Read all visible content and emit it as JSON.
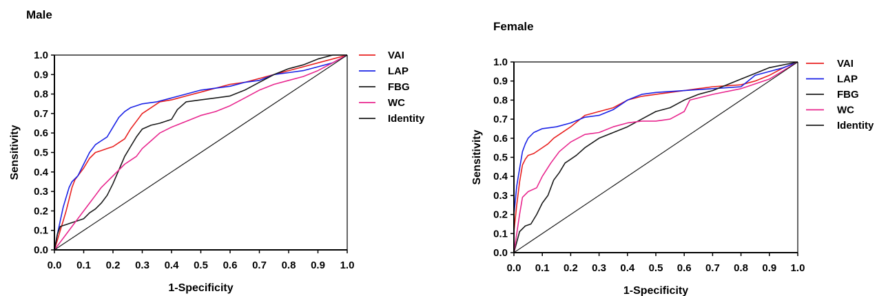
{
  "chart_data": [
    {
      "type": "line",
      "title": "Male",
      "xlabel": "1-Specificity",
      "ylabel": "Sensitivity",
      "xlim": [
        0,
        1
      ],
      "ylim": [
        0,
        1
      ],
      "ticks": [
        "0.0",
        "0.1",
        "0.2",
        "0.3",
        "0.4",
        "0.5",
        "0.6",
        "0.7",
        "0.8",
        "0.9",
        "1.0"
      ],
      "grid": false,
      "legend_position": "right",
      "series": [
        {
          "name": "VAI",
          "color": "#e8201f",
          "points": [
            [
              0,
              0
            ],
            [
              0.01,
              0.05
            ],
            [
              0.02,
              0.1
            ],
            [
              0.03,
              0.15
            ],
            [
              0.04,
              0.2
            ],
            [
              0.05,
              0.26
            ],
            [
              0.06,
              0.32
            ],
            [
              0.07,
              0.36
            ],
            [
              0.08,
              0.38
            ],
            [
              0.1,
              0.42
            ],
            [
              0.12,
              0.47
            ],
            [
              0.14,
              0.5
            ],
            [
              0.16,
              0.51
            ],
            [
              0.18,
              0.52
            ],
            [
              0.2,
              0.53
            ],
            [
              0.22,
              0.55
            ],
            [
              0.24,
              0.57
            ],
            [
              0.26,
              0.62
            ],
            [
              0.28,
              0.66
            ],
            [
              0.3,
              0.7
            ],
            [
              0.33,
              0.73
            ],
            [
              0.36,
              0.76
            ],
            [
              0.4,
              0.77
            ],
            [
              0.45,
              0.79
            ],
            [
              0.5,
              0.81
            ],
            [
              0.55,
              0.83
            ],
            [
              0.6,
              0.85
            ],
            [
              0.65,
              0.86
            ],
            [
              0.7,
              0.88
            ],
            [
              0.75,
              0.9
            ],
            [
              0.8,
              0.92
            ],
            [
              0.85,
              0.94
            ],
            [
              0.9,
              0.96
            ],
            [
              0.95,
              0.98
            ],
            [
              1,
              1
            ]
          ]
        },
        {
          "name": "LAP",
          "color": "#1a22e6",
          "points": [
            [
              0,
              0
            ],
            [
              0.01,
              0.08
            ],
            [
              0.02,
              0.15
            ],
            [
              0.03,
              0.22
            ],
            [
              0.04,
              0.27
            ],
            [
              0.05,
              0.32
            ],
            [
              0.06,
              0.35
            ],
            [
              0.08,
              0.38
            ],
            [
              0.1,
              0.44
            ],
            [
              0.12,
              0.5
            ],
            [
              0.14,
              0.54
            ],
            [
              0.16,
              0.56
            ],
            [
              0.18,
              0.58
            ],
            [
              0.2,
              0.63
            ],
            [
              0.22,
              0.68
            ],
            [
              0.24,
              0.71
            ],
            [
              0.26,
              0.73
            ],
            [
              0.28,
              0.74
            ],
            [
              0.3,
              0.75
            ],
            [
              0.35,
              0.76
            ],
            [
              0.4,
              0.78
            ],
            [
              0.45,
              0.8
            ],
            [
              0.5,
              0.82
            ],
            [
              0.55,
              0.83
            ],
            [
              0.6,
              0.84
            ],
            [
              0.65,
              0.86
            ],
            [
              0.7,
              0.87
            ],
            [
              0.75,
              0.9
            ],
            [
              0.8,
              0.91
            ],
            [
              0.85,
              0.92
            ],
            [
              0.9,
              0.94
            ],
            [
              0.95,
              0.96
            ],
            [
              1,
              1
            ]
          ]
        },
        {
          "name": "FBG",
          "color": "#1a1a1a",
          "points": [
            [
              0,
              0
            ],
            [
              0.01,
              0.08
            ],
            [
              0.02,
              0.12
            ],
            [
              0.04,
              0.13
            ],
            [
              0.06,
              0.14
            ],
            [
              0.08,
              0.15
            ],
            [
              0.1,
              0.16
            ],
            [
              0.12,
              0.19
            ],
            [
              0.14,
              0.21
            ],
            [
              0.16,
              0.24
            ],
            [
              0.18,
              0.28
            ],
            [
              0.2,
              0.34
            ],
            [
              0.22,
              0.41
            ],
            [
              0.24,
              0.48
            ],
            [
              0.26,
              0.53
            ],
            [
              0.28,
              0.58
            ],
            [
              0.3,
              0.62
            ],
            [
              0.33,
              0.64
            ],
            [
              0.36,
              0.65
            ],
            [
              0.4,
              0.67
            ],
            [
              0.42,
              0.72
            ],
            [
              0.45,
              0.76
            ],
            [
              0.5,
              0.77
            ],
            [
              0.55,
              0.78
            ],
            [
              0.6,
              0.79
            ],
            [
              0.65,
              0.82
            ],
            [
              0.7,
              0.86
            ],
            [
              0.75,
              0.9
            ],
            [
              0.8,
              0.93
            ],
            [
              0.85,
              0.95
            ],
            [
              0.9,
              0.98
            ],
            [
              0.95,
              1
            ],
            [
              1,
              1
            ]
          ]
        },
        {
          "name": "WC",
          "color": "#e8268e",
          "points": [
            [
              0,
              0
            ],
            [
              0.02,
              0.04
            ],
            [
              0.04,
              0.08
            ],
            [
              0.06,
              0.12
            ],
            [
              0.08,
              0.16
            ],
            [
              0.1,
              0.2
            ],
            [
              0.12,
              0.24
            ],
            [
              0.14,
              0.28
            ],
            [
              0.16,
              0.32
            ],
            [
              0.18,
              0.35
            ],
            [
              0.2,
              0.38
            ],
            [
              0.22,
              0.41
            ],
            [
              0.24,
              0.44
            ],
            [
              0.26,
              0.46
            ],
            [
              0.28,
              0.48
            ],
            [
              0.3,
              0.52
            ],
            [
              0.33,
              0.56
            ],
            [
              0.36,
              0.6
            ],
            [
              0.4,
              0.63
            ],
            [
              0.45,
              0.66
            ],
            [
              0.5,
              0.69
            ],
            [
              0.55,
              0.71
            ],
            [
              0.6,
              0.74
            ],
            [
              0.65,
              0.78
            ],
            [
              0.7,
              0.82
            ],
            [
              0.75,
              0.85
            ],
            [
              0.8,
              0.87
            ],
            [
              0.85,
              0.89
            ],
            [
              0.9,
              0.92
            ],
            [
              0.95,
              0.96
            ],
            [
              1,
              1
            ]
          ]
        },
        {
          "name": "Identity",
          "color": "#1a1a1a",
          "points": [
            [
              0,
              0
            ],
            [
              1,
              1
            ]
          ]
        }
      ]
    },
    {
      "type": "line",
      "title": "Female",
      "xlabel": "1-Specificity",
      "ylabel": "Sensitivity",
      "xlim": [
        0,
        1
      ],
      "ylim": [
        0,
        1
      ],
      "ticks": [
        "0.0",
        "0.1",
        "0.2",
        "0.3",
        "0.4",
        "0.5",
        "0.6",
        "0.7",
        "0.8",
        "0.9",
        "1.0"
      ],
      "grid": false,
      "legend_position": "right",
      "series": [
        {
          "name": "VAI",
          "color": "#e8201f",
          "points": [
            [
              0,
              0
            ],
            [
              0,
              0.11
            ],
            [
              0.01,
              0.25
            ],
            [
              0.02,
              0.37
            ],
            [
              0.03,
              0.46
            ],
            [
              0.04,
              0.49
            ],
            [
              0.05,
              0.51
            ],
            [
              0.07,
              0.52
            ],
            [
              0.1,
              0.55
            ],
            [
              0.12,
              0.57
            ],
            [
              0.14,
              0.6
            ],
            [
              0.16,
              0.62
            ],
            [
              0.2,
              0.66
            ],
            [
              0.25,
              0.72
            ],
            [
              0.3,
              0.74
            ],
            [
              0.35,
              0.76
            ],
            [
              0.4,
              0.8
            ],
            [
              0.45,
              0.82
            ],
            [
              0.5,
              0.83
            ],
            [
              0.6,
              0.85
            ],
            [
              0.7,
              0.87
            ],
            [
              0.8,
              0.88
            ],
            [
              0.85,
              0.9
            ],
            [
              0.9,
              0.93
            ],
            [
              0.95,
              0.97
            ],
            [
              1,
              1
            ]
          ]
        },
        {
          "name": "LAP",
          "color": "#1a22e6",
          "points": [
            [
              0,
              0
            ],
            [
              0,
              0.2
            ],
            [
              0.01,
              0.35
            ],
            [
              0.02,
              0.44
            ],
            [
              0.03,
              0.53
            ],
            [
              0.04,
              0.57
            ],
            [
              0.05,
              0.6
            ],
            [
              0.07,
              0.63
            ],
            [
              0.1,
              0.65
            ],
            [
              0.15,
              0.66
            ],
            [
              0.2,
              0.68
            ],
            [
              0.25,
              0.71
            ],
            [
              0.3,
              0.72
            ],
            [
              0.35,
              0.75
            ],
            [
              0.4,
              0.8
            ],
            [
              0.45,
              0.83
            ],
            [
              0.5,
              0.84
            ],
            [
              0.6,
              0.85
            ],
            [
              0.7,
              0.86
            ],
            [
              0.8,
              0.87
            ],
            [
              0.85,
              0.93
            ],
            [
              0.9,
              0.95
            ],
            [
              0.95,
              0.97
            ],
            [
              1,
              1
            ]
          ]
        },
        {
          "name": "FBG",
          "color": "#1a1a1a",
          "points": [
            [
              0,
              0
            ],
            [
              0.02,
              0.11
            ],
            [
              0.04,
              0.14
            ],
            [
              0.06,
              0.15
            ],
            [
              0.08,
              0.2
            ],
            [
              0.1,
              0.26
            ],
            [
              0.12,
              0.3
            ],
            [
              0.14,
              0.38
            ],
            [
              0.16,
              0.42
            ],
            [
              0.18,
              0.47
            ],
            [
              0.2,
              0.49
            ],
            [
              0.22,
              0.51
            ],
            [
              0.25,
              0.55
            ],
            [
              0.3,
              0.6
            ],
            [
              0.35,
              0.63
            ],
            [
              0.4,
              0.66
            ],
            [
              0.45,
              0.7
            ],
            [
              0.5,
              0.74
            ],
            [
              0.55,
              0.76
            ],
            [
              0.6,
              0.8
            ],
            [
              0.65,
              0.83
            ],
            [
              0.7,
              0.85
            ],
            [
              0.75,
              0.88
            ],
            [
              0.8,
              0.91
            ],
            [
              0.85,
              0.94
            ],
            [
              0.9,
              0.97
            ],
            [
              1,
              1
            ]
          ]
        },
        {
          "name": "WC",
          "color": "#e8268e",
          "points": [
            [
              0,
              0
            ],
            [
              0.01,
              0.1
            ],
            [
              0.02,
              0.2
            ],
            [
              0.03,
              0.29
            ],
            [
              0.05,
              0.32
            ],
            [
              0.08,
              0.34
            ],
            [
              0.1,
              0.4
            ],
            [
              0.13,
              0.47
            ],
            [
              0.16,
              0.53
            ],
            [
              0.2,
              0.58
            ],
            [
              0.25,
              0.62
            ],
            [
              0.3,
              0.63
            ],
            [
              0.35,
              0.66
            ],
            [
              0.4,
              0.68
            ],
            [
              0.45,
              0.69
            ],
            [
              0.5,
              0.69
            ],
            [
              0.55,
              0.7
            ],
            [
              0.6,
              0.74
            ],
            [
              0.62,
              0.8
            ],
            [
              0.7,
              0.83
            ],
            [
              0.8,
              0.86
            ],
            [
              0.9,
              0.91
            ],
            [
              1,
              1
            ]
          ]
        },
        {
          "name": "Identity",
          "color": "#1a1a1a",
          "points": [
            [
              0,
              0
            ],
            [
              1,
              1
            ]
          ]
        }
      ]
    }
  ]
}
